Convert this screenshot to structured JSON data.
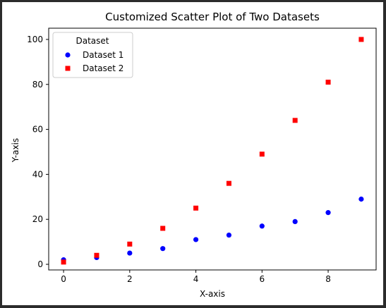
{
  "chart_data": {
    "type": "scatter",
    "title": "Customized Scatter Plot of Two Datasets",
    "xlabel": "X-axis",
    "ylabel": "Y-axis",
    "xlim": [
      -0.45,
      9.45
    ],
    "ylim": [
      -2.5,
      105
    ],
    "xticks": [
      0,
      2,
      4,
      6,
      8
    ],
    "yticks": [
      0,
      20,
      40,
      60,
      80,
      100
    ],
    "grid": false,
    "legend": {
      "title": "Dataset",
      "placement": "top-left",
      "entries": [
        "Dataset 1",
        "Dataset 2"
      ]
    },
    "series": [
      {
        "name": "Dataset 1",
        "marker": "circle",
        "color": "#0000ff",
        "x": [
          0,
          1,
          2,
          3,
          4,
          5,
          6,
          7,
          8,
          9
        ],
        "y": [
          2,
          3,
          5,
          7,
          11,
          13,
          17,
          19,
          23,
          29
        ]
      },
      {
        "name": "Dataset 2",
        "marker": "square",
        "color": "#ff0000",
        "x": [
          0,
          1,
          2,
          3,
          4,
          5,
          6,
          7,
          8,
          9
        ],
        "y": [
          1,
          4,
          9,
          16,
          25,
          36,
          49,
          64,
          81,
          100
        ]
      }
    ]
  }
}
